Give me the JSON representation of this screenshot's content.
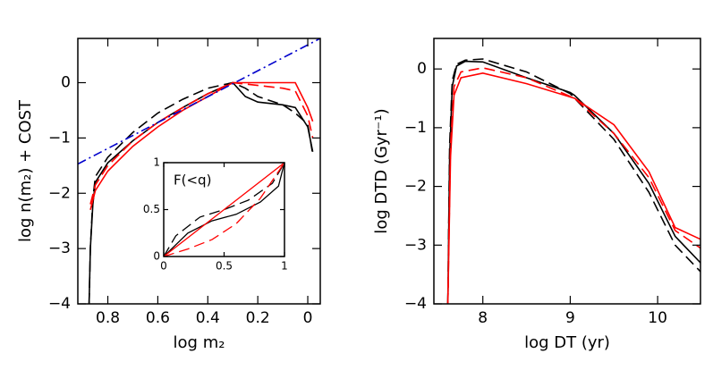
{
  "chart_data": [
    {
      "type": "line",
      "xlabel": "log m₂",
      "ylabel": "log n(m₂) + COST",
      "xlim": [
        0.92,
        -0.05
      ],
      "ylim": [
        -4,
        0.8
      ],
      "xticks": [
        0.8,
        0.6,
        0.4,
        0.2,
        0
      ],
      "yticks": [
        {
          "value": -4,
          "label": "−4"
        },
        {
          "value": -3,
          "label": "−3"
        },
        {
          "value": -2,
          "label": "−2"
        },
        {
          "value": -1,
          "label": "−1"
        },
        0
      ],
      "series": [
        {
          "color": "#000000",
          "dash": "solid",
          "x": [
            0.875,
            0.87,
            0.86,
            0.85,
            0.8,
            0.7,
            0.6,
            0.5,
            0.4,
            0.3,
            0.25,
            0.2,
            0.1,
            0.05,
            0,
            -0.02
          ],
          "values": [
            -4,
            -3,
            -2.2,
            -1.8,
            -1.45,
            -1.05,
            -0.72,
            -0.45,
            -0.2,
            0,
            -0.25,
            -0.35,
            -0.4,
            -0.45,
            -0.8,
            -1.25
          ]
        },
        {
          "color": "#000000",
          "dash": "dashed",
          "x": [
            0.875,
            0.87,
            0.86,
            0.85,
            0.8,
            0.7,
            0.6,
            0.5,
            0.4,
            0.3,
            0.25,
            0.2,
            0.1,
            0.05,
            0,
            -0.02
          ],
          "values": [
            -4,
            -3,
            -2.1,
            -1.7,
            -1.35,
            -0.9,
            -0.55,
            -0.3,
            -0.1,
            0,
            -0.1,
            -0.25,
            -0.4,
            -0.55,
            -0.75,
            -1.3
          ]
        },
        {
          "color": "#ff0000",
          "dash": "solid",
          "x": [
            0.87,
            0.85,
            0.8,
            0.7,
            0.6,
            0.5,
            0.4,
            0.3,
            0.05,
            0,
            -0.02
          ],
          "values": [
            -2.3,
            -1.95,
            -1.6,
            -1.15,
            -0.8,
            -0.5,
            -0.25,
            0,
            0,
            -0.45,
            -0.7
          ]
        },
        {
          "color": "#ff0000",
          "dash": "dashed",
          "x": [
            0.87,
            0.85,
            0.8,
            0.7,
            0.6,
            0.5,
            0.4,
            0.3,
            0.2,
            0.1,
            0.05,
            0,
            -0.02
          ],
          "values": [
            -2.2,
            -1.85,
            -1.5,
            -1.05,
            -0.72,
            -0.45,
            -0.2,
            0,
            -0.05,
            -0.1,
            -0.15,
            -0.6,
            -1
          ]
        },
        {
          "color": "#0000cc",
          "dash": "dashdot",
          "x": [
            0.92,
            -0.05
          ],
          "values": [
            -1.47,
            0.8
          ]
        }
      ]
    },
    {
      "type": "line",
      "label": "F(<q)",
      "xlim": [
        0,
        1
      ],
      "ylim": [
        0,
        1
      ],
      "xticks": [
        0,
        0.5,
        1
      ],
      "yticks": [
        0,
        0.5,
        1
      ],
      "series": [
        {
          "color": "#000000",
          "dash": "solid",
          "x": [
            0,
            0.2,
            0.4,
            0.6,
            0.8,
            0.95,
            1
          ],
          "values": [
            0,
            0.25,
            0.38,
            0.45,
            0.58,
            0.75,
            1
          ]
        },
        {
          "color": "#000000",
          "dash": "dashed",
          "x": [
            0,
            0.1,
            0.3,
            0.5,
            0.7,
            0.9,
            1
          ],
          "values": [
            0,
            0.22,
            0.42,
            0.5,
            0.6,
            0.78,
            1
          ]
        },
        {
          "color": "#ff0000",
          "dash": "solid",
          "x": [
            0,
            0.5,
            1
          ],
          "values": [
            0,
            0.5,
            1
          ]
        },
        {
          "color": "#ff0000",
          "dash": "dashed",
          "x": [
            0,
            0.2,
            0.4,
            0.6,
            0.8,
            1
          ],
          "values": [
            0,
            0.08,
            0.18,
            0.35,
            0.62,
            1
          ]
        }
      ]
    },
    {
      "type": "line",
      "xlabel": "log DT (yr)",
      "ylabel": "log DTD (Gyr⁻¹)",
      "xlim": [
        7.44,
        10.49
      ],
      "ylim": [
        -4,
        0.52
      ],
      "xticks": [
        8,
        9,
        10
      ],
      "yticks": [
        {
          "value": -4,
          "label": "−4"
        },
        {
          "value": -3,
          "label": "−3"
        },
        {
          "value": -2,
          "label": "−2"
        },
        {
          "value": -1,
          "label": "−1"
        },
        0
      ],
      "series": [
        {
          "color": "#000000",
          "dash": "solid",
          "x": [
            7.6,
            7.62,
            7.65,
            7.7,
            7.8,
            8,
            8.5,
            9,
            9.05,
            9.5,
            9.9,
            10.2,
            10.49
          ],
          "values": [
            -4,
            -1.5,
            -0.3,
            0.05,
            0.13,
            0.12,
            -0.15,
            -0.4,
            -0.45,
            -1.1,
            -1.95,
            -2.85,
            -3.3
          ]
        },
        {
          "color": "#000000",
          "dash": "dashed",
          "x": [
            7.6,
            7.62,
            7.65,
            7.7,
            7.8,
            8,
            8.5,
            9,
            9.05,
            9.5,
            9.9,
            10.2,
            10.49
          ],
          "values": [
            -4,
            -1.3,
            -0.2,
            0.08,
            0.15,
            0.17,
            -0.05,
            -0.42,
            -0.5,
            -1.2,
            -2.1,
            -3,
            -3.45
          ]
        },
        {
          "color": "#ff0000",
          "dash": "solid",
          "x": [
            7.6,
            7.63,
            7.67,
            7.75,
            8,
            8.5,
            9.05,
            9.5,
            9.9,
            10.2,
            10.49
          ],
          "values": [
            -4,
            -1.5,
            -0.45,
            -0.15,
            -0.07,
            -0.25,
            -0.5,
            -0.95,
            -1.75,
            -2.7,
            -2.9
          ]
        },
        {
          "color": "#ff0000",
          "dash": "dashed",
          "x": [
            7.6,
            7.63,
            7.67,
            7.75,
            8,
            8.5,
            9.05,
            9.5,
            9.9,
            10.2,
            10.49
          ],
          "values": [
            -4,
            -1.3,
            -0.3,
            -0.05,
            0.02,
            -0.15,
            -0.5,
            -1.1,
            -1.85,
            -2.75,
            -3.05
          ]
        }
      ]
    }
  ]
}
